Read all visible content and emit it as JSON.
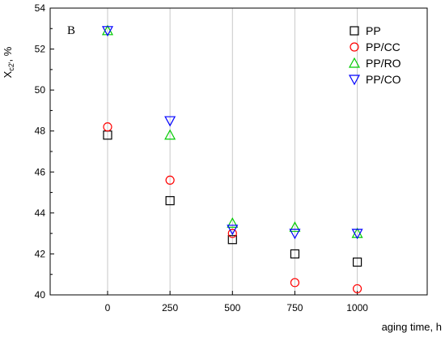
{
  "chart_data": {
    "type": "scatter",
    "panel_label": "B",
    "xlabel": "aging time, h",
    "ylabel_main": "X",
    "ylabel_sub": "c2'",
    "ylabel_suffix": ", %",
    "xlim": [
      -230,
      1280
    ],
    "ylim": [
      40,
      54
    ],
    "x_ticks": [
      0,
      250,
      500,
      750,
      1000
    ],
    "y_ticks": [
      40,
      42,
      44,
      46,
      48,
      50,
      52,
      54
    ],
    "grid": "vertical",
    "legend_position": "top-right",
    "series": [
      {
        "name": "PP",
        "marker": "square",
        "color": "#000000",
        "x": [
          0,
          250,
          500,
          750,
          1000
        ],
        "y": [
          47.8,
          44.6,
          42.7,
          42.0,
          41.6
        ]
      },
      {
        "name": "PP/CC",
        "marker": "circle",
        "color": "#ff0000",
        "x": [
          0,
          250,
          500,
          750,
          1000
        ],
        "y": [
          48.2,
          45.6,
          43.0,
          40.6,
          40.3
        ]
      },
      {
        "name": "PP/RO",
        "marker": "triangle-up",
        "color": "#00cc00",
        "x": [
          0,
          250,
          500,
          750,
          1000
        ],
        "y": [
          52.9,
          47.8,
          43.5,
          43.3,
          43.0
        ]
      },
      {
        "name": "PP/CO",
        "marker": "triangle-down",
        "color": "#0000ff",
        "x": [
          0,
          250,
          500,
          750,
          1000
        ],
        "y": [
          52.9,
          48.5,
          43.2,
          43.0,
          43.0
        ]
      }
    ]
  }
}
